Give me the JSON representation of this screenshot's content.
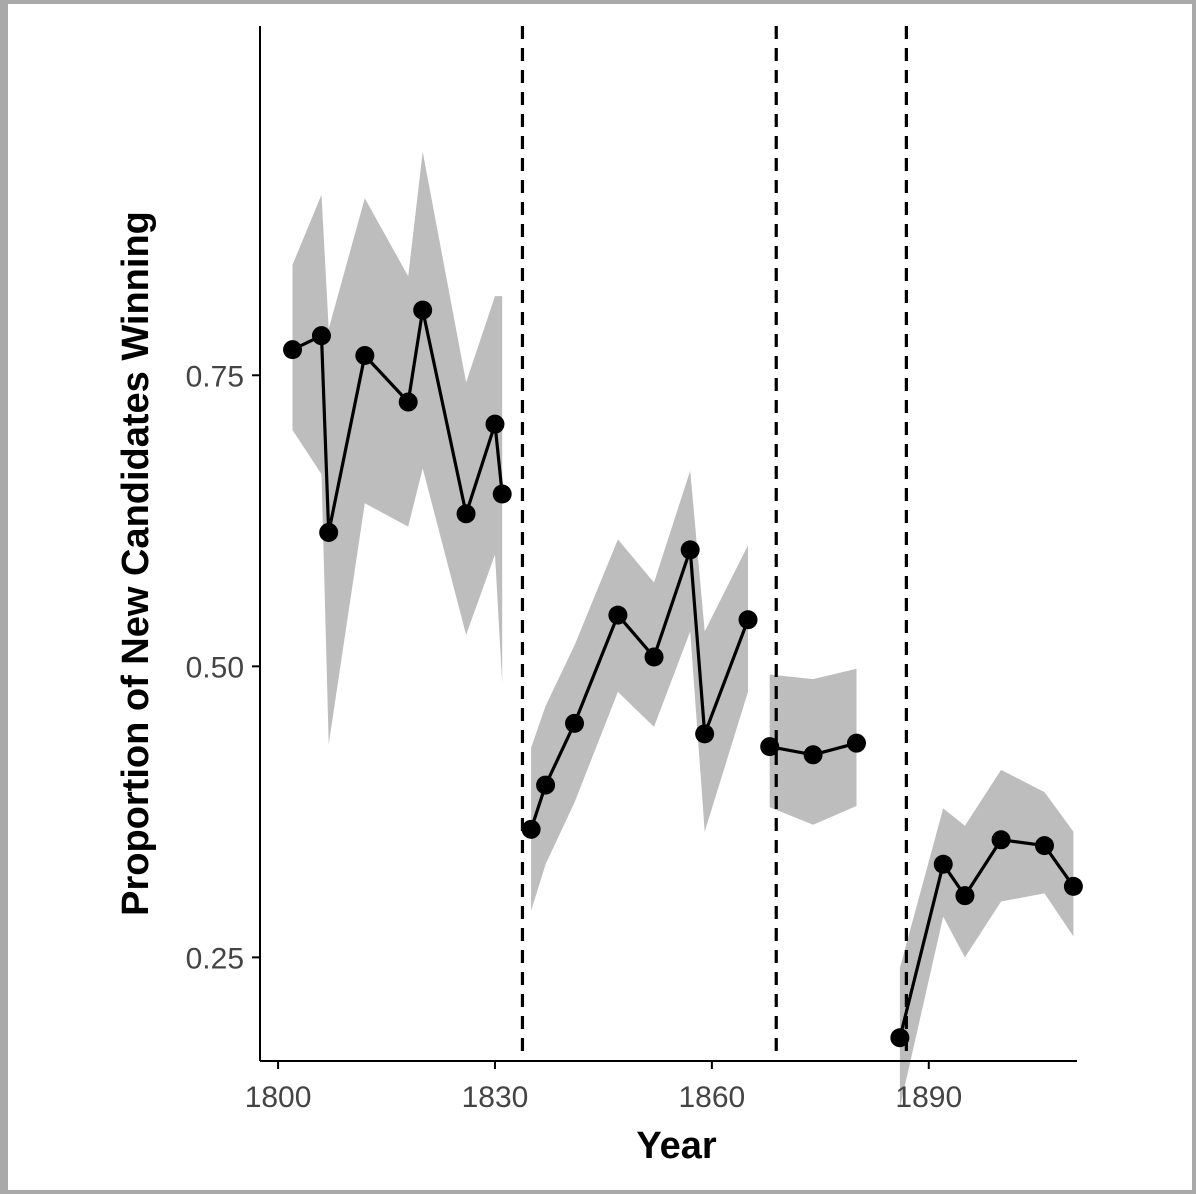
{
  "chart_data": {
    "type": "line",
    "title": "",
    "xlabel": "Year",
    "ylabel": "Proportion of New Candidates Winning",
    "xlim": [
      1797.5,
      1910.5
    ],
    "ylim": [
      0.161,
      1.05
    ],
    "x_ticks": [
      1800,
      1830,
      1860,
      1890
    ],
    "y_ticks": [
      0.25,
      0.5,
      0.75
    ],
    "x_tick_labels": [
      "1800",
      "1830",
      "1860",
      "1890"
    ],
    "y_tick_labels": [
      "0.25",
      "0.50",
      "0.75"
    ],
    "grid": false,
    "legend": "none",
    "vlines": [
      {
        "x": 1833.8,
        "style": "dashed"
      },
      {
        "x": 1868.9,
        "style": "dashed"
      },
      {
        "x": 1886.9,
        "style": "dashed"
      }
    ],
    "series": [
      {
        "points": [
          {
            "x": 1802,
            "y": 0.772,
            "lo": 0.703,
            "hi": 0.845
          },
          {
            "x": 1806,
            "y": 0.784,
            "lo": 0.665,
            "hi": 0.905
          },
          {
            "x": 1807,
            "y": 0.615,
            "lo": 0.433,
            "hi": 0.79
          },
          {
            "x": 1812,
            "y": 0.767,
            "lo": 0.64,
            "hi": 0.902
          },
          {
            "x": 1818,
            "y": 0.727,
            "lo": 0.62,
            "hi": 0.835
          },
          {
            "x": 1820,
            "y": 0.806,
            "lo": 0.67,
            "hi": 0.942
          },
          {
            "x": 1826,
            "y": 0.631,
            "lo": 0.527,
            "hi": 0.744
          },
          {
            "x": 1830,
            "y": 0.708,
            "lo": 0.596,
            "hi": 0.818
          },
          {
            "x": 1831,
            "y": 0.648,
            "lo": 0.485,
            "hi": 0.818
          }
        ]
      },
      {
        "points": [
          {
            "x": 1835,
            "y": 0.36,
            "lo": 0.29,
            "hi": 0.43
          },
          {
            "x": 1837,
            "y": 0.398,
            "lo": 0.33,
            "hi": 0.466
          },
          {
            "x": 1841,
            "y": 0.451,
            "lo": 0.383,
            "hi": 0.518
          },
          {
            "x": 1847,
            "y": 0.544,
            "lo": 0.478,
            "hi": 0.609
          },
          {
            "x": 1852,
            "y": 0.508,
            "lo": 0.448,
            "hi": 0.572
          },
          {
            "x": 1857,
            "y": 0.6,
            "lo": 0.53,
            "hi": 0.668
          },
          {
            "x": 1859,
            "y": 0.442,
            "lo": 0.358,
            "hi": 0.53
          },
          {
            "x": 1865,
            "y": 0.54,
            "lo": 0.478,
            "hi": 0.604
          }
        ]
      },
      {
        "points": [
          {
            "x": 1868,
            "y": 0.431,
            "lo": 0.379,
            "hi": 0.493
          },
          {
            "x": 1874,
            "y": 0.424,
            "lo": 0.364,
            "hi": 0.489
          },
          {
            "x": 1880,
            "y": 0.434,
            "lo": 0.38,
            "hi": 0.498
          }
        ]
      },
      {
        "points": [
          {
            "x": 1886,
            "y": 0.181,
            "lo": 0.121,
            "hi": 0.241
          },
          {
            "x": 1892,
            "y": 0.33,
            "lo": 0.285,
            "hi": 0.378
          },
          {
            "x": 1895,
            "y": 0.303,
            "lo": 0.25,
            "hi": 0.363
          },
          {
            "x": 1900,
            "y": 0.351,
            "lo": 0.298,
            "hi": 0.411
          },
          {
            "x": 1906,
            "y": 0.346,
            "lo": 0.305,
            "hi": 0.392
          },
          {
            "x": 1910,
            "y": 0.311,
            "lo": 0.268,
            "hi": 0.358
          }
        ]
      }
    ],
    "colors": {
      "line": "#000000",
      "ribbon": "#bdbdbd",
      "axis": "#000000",
      "tick_label": "#444444"
    }
  }
}
